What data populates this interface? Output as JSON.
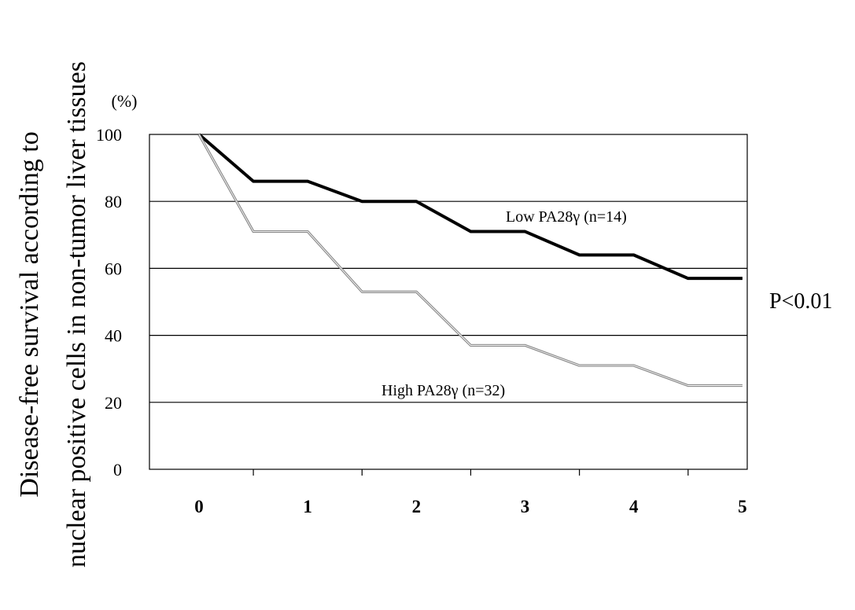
{
  "chart_data": {
    "type": "line",
    "ylabel_lines": [
      "Disease-free survival  according to",
      "nuclear  positive cells in non-tumor  liver tissues"
    ],
    "y_unit": "(%)",
    "x": [
      0,
      1,
      2,
      3,
      4,
      5
    ],
    "x_tick_labels": [
      "0",
      "1",
      "2",
      "3",
      "4",
      "5"
    ],
    "y_tick_labels": [
      "100",
      "80",
      "60",
      "40",
      "20",
      "0"
    ],
    "y_ticks": [
      100,
      80,
      60,
      40,
      20,
      0
    ],
    "xlim": [
      0,
      5.5
    ],
    "ylim": [
      0,
      100
    ],
    "grid": "horizontal",
    "series": [
      {
        "name": "Low PA28γ (n=14)",
        "x": [
          0,
          0.5,
          1,
          1.5,
          2,
          2.5,
          3,
          3.5,
          4,
          4.5,
          5
        ],
        "values": [
          100,
          86,
          86,
          80,
          80,
          71,
          71,
          64,
          64,
          57,
          57
        ],
        "color": "#000000",
        "style": "thick"
      },
      {
        "name": "High PA28γ (n=32)",
        "x": [
          0,
          0.5,
          1,
          1.5,
          2,
          2.5,
          3,
          3.5,
          4,
          4.5,
          5
        ],
        "values": [
          100,
          71,
          71,
          53,
          53,
          37,
          37,
          31,
          31,
          25,
          25
        ],
        "color": "#888888",
        "style": "thin-double"
      }
    ],
    "annotation": "P<0.01"
  }
}
